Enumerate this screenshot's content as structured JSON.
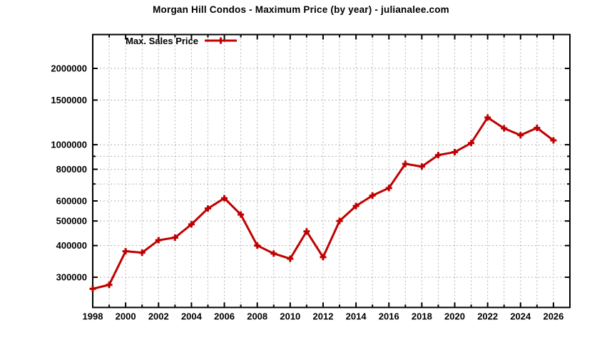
{
  "page": {
    "background_color": "#ffffff"
  },
  "chart_data": {
    "type": "line",
    "title": "Morgan Hill Condos - Maximum Price (by year) - julianalee.com",
    "xlabel": "",
    "ylabel": "",
    "grid": true,
    "yscale": "log",
    "xlim": [
      1998,
      2027
    ],
    "ylim": [
      228000,
      2720000
    ],
    "legend_position": "top-left-inside",
    "x": [
      1998,
      1999,
      2000,
      2001,
      2002,
      2003,
      2004,
      2005,
      2006,
      2007,
      2008,
      2009,
      2010,
      2011,
      2012,
      2013,
      2014,
      2015,
      2016,
      2017,
      2018,
      2019,
      2020,
      2021,
      2022,
      2023,
      2024,
      2025,
      2026
    ],
    "series": [
      {
        "name": "Max. Sales Price",
        "color": "#c00000",
        "marker": "plus",
        "values": [
          270000,
          280000,
          380000,
          375000,
          420000,
          430000,
          485000,
          560000,
          615000,
          530000,
          400000,
          372000,
          355000,
          455000,
          360000,
          500000,
          573000,
          630000,
          675000,
          840000,
          820000,
          910000,
          935000,
          1015000,
          1280000,
          1160000,
          1090000,
          1165000,
          1040000
        ]
      }
    ],
    "x_axis": {
      "labeled_ticks": [
        1998,
        2000,
        2002,
        2004,
        2006,
        2008,
        2010,
        2012,
        2014,
        2016,
        2018,
        2020,
        2022,
        2024,
        2026
      ],
      "minor_tick_step": 1,
      "grid_step": 1
    },
    "y_axis": {
      "labeled_ticks": [
        300000,
        400000,
        500000,
        600000,
        800000,
        1000000,
        1500000,
        2000000
      ],
      "unlabeled_ticks": [
        700000,
        900000
      ]
    },
    "style": {
      "line_color": "#c00000",
      "grid_color": "#b3b3b3",
      "border_color": "#000000",
      "text_color": "#000000",
      "background_color": "#ffffff"
    }
  }
}
